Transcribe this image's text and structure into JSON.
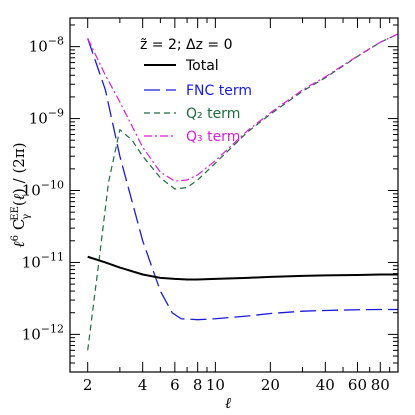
{
  "chart_data": {
    "type": "line",
    "title": "z̃ = 2;  Δz = 0",
    "xlabel": "ℓ",
    "ylabel": "ℓ⁶ C_γ^EE(ℓ) / (2π)",
    "x_scale": "log",
    "y_scale": "log",
    "xlim": [
      1.6,
      100
    ],
    "ylim": [
      3e-13,
      2.5e-08
    ],
    "x_ticks": [
      {
        "value": 2,
        "label": "2"
      },
      {
        "value": 4,
        "label": "4"
      },
      {
        "value": 6,
        "label": "6"
      },
      {
        "value": 8,
        "label": "8"
      },
      {
        "value": 10,
        "label": "10"
      },
      {
        "value": 20,
        "label": "20"
      },
      {
        "value": 40,
        "label": "40"
      },
      {
        "value": 60,
        "label": "60"
      },
      {
        "value": 80,
        "label": "80"
      }
    ],
    "y_ticks": [
      {
        "value": 1e-12,
        "mantissa": "10",
        "exp": "−12"
      },
      {
        "value": 1e-11,
        "mantissa": "10",
        "exp": "−11"
      },
      {
        "value": 1e-10,
        "mantissa": "10",
        "exp": "−10"
      },
      {
        "value": 1e-09,
        "mantissa": "10",
        "exp": "−9"
      },
      {
        "value": 1e-08,
        "mantissa": "10",
        "exp": "−8"
      }
    ],
    "legend_position": "top-center",
    "series": [
      {
        "name": "Total",
        "color": "#000000",
        "dash": "solid",
        "width": 2,
        "points": [
          [
            2,
            1.2e-11
          ],
          [
            2.5,
            1e-11
          ],
          [
            3,
            8.5e-12
          ],
          [
            4,
            6.8e-12
          ],
          [
            5,
            6.1e-12
          ],
          [
            6,
            5.9e-12
          ],
          [
            7,
            5.8e-12
          ],
          [
            8,
            5.8e-12
          ],
          [
            10,
            5.9e-12
          ],
          [
            15,
            6.1e-12
          ],
          [
            20,
            6.3e-12
          ],
          [
            30,
            6.5e-12
          ],
          [
            40,
            6.6e-12
          ],
          [
            60,
            6.7e-12
          ],
          [
            80,
            6.8e-12
          ],
          [
            100,
            6.8e-12
          ]
        ]
      },
      {
        "name": "FNC term",
        "color": "#1a1adc",
        "dash": "long-dash",
        "width": 1.3,
        "points": [
          [
            2,
            1.3e-08
          ],
          [
            2.5,
            2.5e-09
          ],
          [
            3,
            3e-10
          ],
          [
            4,
            2e-11
          ],
          [
            5,
            4e-12
          ],
          [
            5.8,
            2e-12
          ],
          [
            6.5,
            1.65e-12
          ],
          [
            8,
            1.6e-12
          ],
          [
            10,
            1.65e-12
          ],
          [
            15,
            1.8e-12
          ],
          [
            20,
            1.95e-12
          ],
          [
            30,
            2.1e-12
          ],
          [
            40,
            2.15e-12
          ],
          [
            60,
            2.2e-12
          ],
          [
            80,
            2.22e-12
          ],
          [
            100,
            2.22e-12
          ]
        ]
      },
      {
        "name": "Q₂ term",
        "color": "#1e6b3e",
        "dash": "dash",
        "width": 1.2,
        "points": [
          [
            2,
            6e-13
          ],
          [
            2.3,
            1e-11
          ],
          [
            2.6,
            1.3e-10
          ],
          [
            3,
            7e-10
          ],
          [
            3.5,
            5e-10
          ],
          [
            4,
            3e-10
          ],
          [
            5,
            1.5e-10
          ],
          [
            6,
            1.05e-10
          ],
          [
            7,
            1.1e-10
          ],
          [
            8,
            1.4e-10
          ],
          [
            10,
            2.4e-10
          ],
          [
            15,
            6.5e-10
          ],
          [
            20,
            1.15e-09
          ],
          [
            30,
            2.4e-09
          ],
          [
            40,
            3.7e-09
          ],
          [
            60,
            7.3e-09
          ],
          [
            80,
            1.15e-08
          ],
          [
            100,
            1.5e-08
          ]
        ]
      },
      {
        "name": "Q₃ term",
        "color": "#d81fd8",
        "dash": "dash-dot",
        "width": 1.2,
        "points": [
          [
            2,
            1.3e-08
          ],
          [
            2.5,
            4e-09
          ],
          [
            3,
            1.7e-09
          ],
          [
            4,
            4e-10
          ],
          [
            5,
            1.8e-10
          ],
          [
            6,
            1.35e-10
          ],
          [
            7,
            1.4e-10
          ],
          [
            8,
            1.65e-10
          ],
          [
            10,
            2.6e-10
          ],
          [
            15,
            6.8e-10
          ],
          [
            20,
            1.2e-09
          ],
          [
            30,
            2.5e-09
          ],
          [
            40,
            3.8e-09
          ],
          [
            60,
            7.4e-09
          ],
          [
            80,
            1.15e-08
          ],
          [
            100,
            1.5e-08
          ]
        ]
      }
    ]
  }
}
